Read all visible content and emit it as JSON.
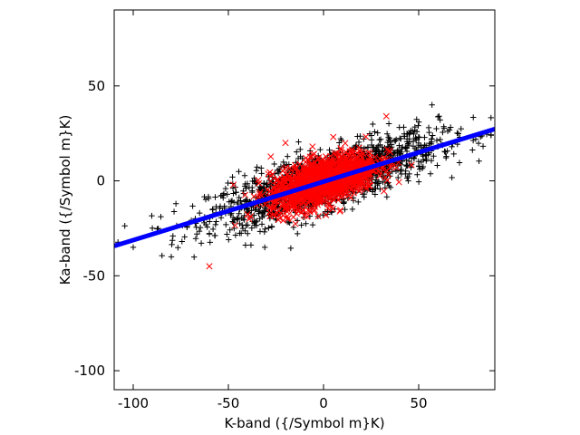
{
  "chart_data": {
    "type": "scatter",
    "xlabel": "K-band ({/Symbol m}K)",
    "ylabel": "Ka-band ({/Symbol m}K)",
    "xlim": [
      -110,
      90
    ],
    "ylim": [
      -110,
      90
    ],
    "x_ticks": [
      -100,
      -50,
      0,
      50
    ],
    "y_ticks": [
      -100,
      -50,
      0,
      50
    ],
    "grid": false,
    "legend": "none",
    "series": [
      {
        "marker": "plus",
        "color": "#000000",
        "count": 1600,
        "x_mean": 0,
        "x_sd": 30,
        "slope": 0.31,
        "intercept": 0,
        "residual_sd": 7.5,
        "sample_points": [
          [
            -100,
            -35
          ],
          [
            -80,
            -40
          ],
          [
            -60,
            -28
          ],
          [
            -40,
            -15
          ],
          [
            -20,
            -5
          ],
          [
            0,
            0
          ],
          [
            20,
            5
          ],
          [
            40,
            12
          ],
          [
            57,
            40
          ],
          [
            60,
            18
          ],
          [
            80,
            22
          ],
          [
            88,
            24
          ]
        ]
      },
      {
        "marker": "cross",
        "color": "#ff0000",
        "count": 1400,
        "x_mean": 0,
        "x_sd": 14,
        "slope": 0.31,
        "intercept": 0,
        "residual_sd": 6,
        "sample_points": [
          [
            -60,
            -45
          ],
          [
            -30,
            -10
          ],
          [
            -20,
            20
          ],
          [
            -10,
            -5
          ],
          [
            0,
            0
          ],
          [
            10,
            5
          ],
          [
            20,
            10
          ],
          [
            33,
            34
          ]
        ]
      },
      {
        "marker": "line",
        "color": "#0000ff",
        "x": [
          -110,
          90
        ],
        "y": [
          -34.3,
          27.3
        ]
      }
    ]
  }
}
